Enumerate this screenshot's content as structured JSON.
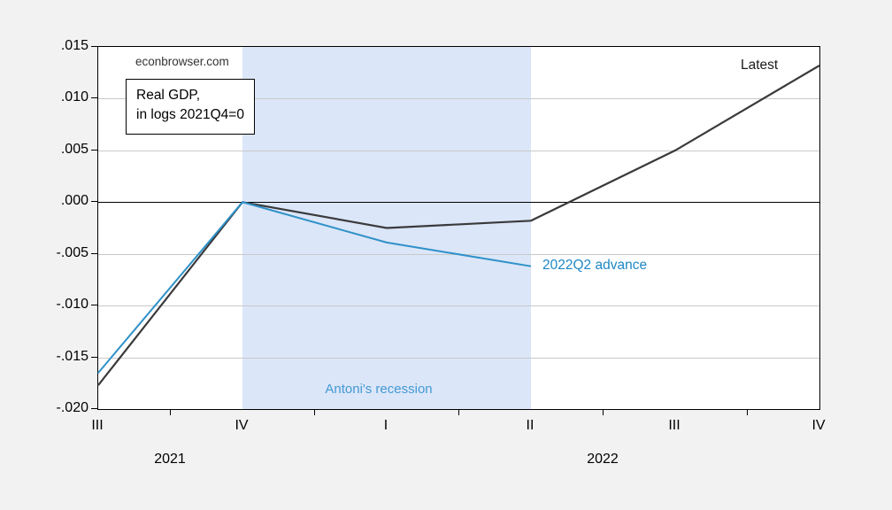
{
  "page": {
    "background_color": "#f2f2f2",
    "plot_background_color": "#ffffff"
  },
  "watermark": "econbrowser.com",
  "annotation_box": {
    "line1": "Real GDP,",
    "line2": "in logs 2021Q4=0"
  },
  "chart_data": {
    "type": "line",
    "title": "Real GDP, in logs 2021Q4=0",
    "x_categories": [
      "2021Q3",
      "2021Q4",
      "2022Q1",
      "2022Q2",
      "2022Q3",
      "2022Q4"
    ],
    "x_quarter_labels": [
      "III",
      "IV",
      "I",
      "II",
      "III",
      "IV"
    ],
    "year_labels": [
      {
        "text": "2021",
        "from_index": 0,
        "to_index": 1
      },
      {
        "text": "2022",
        "from_index": 2,
        "to_index": 5
      }
    ],
    "ylim": [
      -0.02,
      0.015
    ],
    "ytick_values": [
      0.015,
      0.01,
      0.005,
      0.0,
      -0.005,
      -0.01,
      -0.015,
      -0.02
    ],
    "ytick_labels": [
      ".015",
      ".010",
      ".005",
      ".000",
      "-.005",
      "-.010",
      "-.015",
      "-.020"
    ],
    "gridline_values": [
      0.01,
      0.005,
      -0.005,
      -0.01,
      -0.015
    ],
    "zero_line_value": 0.0,
    "grid_on": true,
    "legend_position": "inline-labels",
    "series": [
      {
        "name": "Latest",
        "color": "#3a3a3c",
        "line_width": 2.2,
        "values": [
          -0.0177,
          0.0,
          -0.0025,
          -0.0018,
          0.005,
          0.0132
        ]
      },
      {
        "name": "2022Q2 advance",
        "color": "#2e91c8",
        "line_width": 2.0,
        "values": [
          -0.0165,
          0.0,
          -0.0039,
          -0.0062,
          null,
          null
        ]
      }
    ],
    "shaded_region": {
      "label": "Antoni's recession",
      "from_category": "2021Q4",
      "to_category": "2022Q2",
      "from_index": 1,
      "to_index": 3,
      "color": "#dbe6f8"
    },
    "colors": {
      "gridline": "#c9c9c9",
      "axis": "#000000",
      "latest_label": "#1a1a1a",
      "advance_label": "#1e87c5",
      "recession_label": "#4599d3"
    }
  }
}
